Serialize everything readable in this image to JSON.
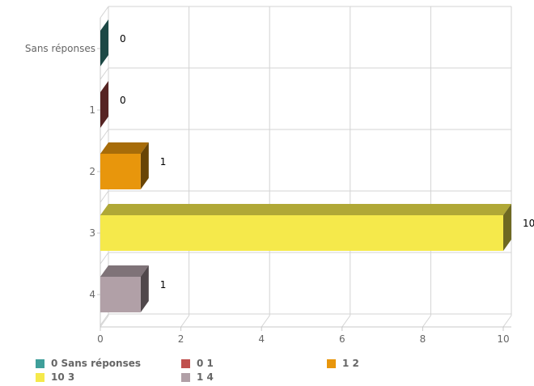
{
  "chart_data": {
    "type": "bar",
    "orientation": "horizontal",
    "three_d": true,
    "categories": [
      "Sans réponses",
      "1",
      "2",
      "3",
      "4"
    ],
    "values": [
      0,
      0,
      1,
      10,
      1
    ],
    "data_labels": [
      "0",
      "0",
      "1",
      "10",
      "1"
    ],
    "colors": [
      "#3f9f9a",
      "#c0504d",
      "#e8960c",
      "#f5e94b",
      "#b1a0a7"
    ],
    "xlim": [
      0,
      10
    ],
    "xticks": [
      "0",
      "2",
      "4",
      "6",
      "8",
      "10"
    ],
    "xtick_values": [
      0,
      2,
      4,
      6,
      8,
      10
    ],
    "grid": true,
    "legend_position": "bottom-left",
    "legend": [
      {
        "text": "0 Sans réponses",
        "color": "#3f9f9a"
      },
      {
        "text": "0 1",
        "color": "#c0504d"
      },
      {
        "text": "1 2",
        "color": "#e8960c"
      },
      {
        "text": "10 3",
        "color": "#f5e94b"
      },
      {
        "text": "1 4",
        "color": "#b1a0a7"
      }
    ]
  }
}
